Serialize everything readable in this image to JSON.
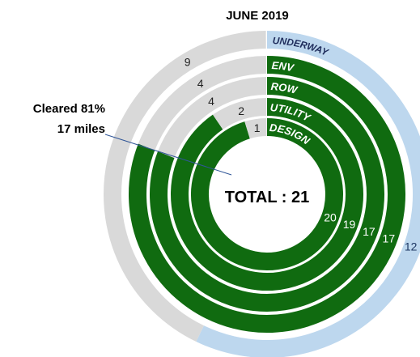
{
  "chart_data": {
    "type": "radial_bar",
    "title": "JUNE 2019",
    "center_label": "TOTAL : 21",
    "annotation": [
      "Cleared 81%",
      "17 miles"
    ],
    "series": [
      {
        "name": "UNDERWAY",
        "colors": [
          "#bdd7ee",
          "#d9d9d9"
        ],
        "values": [
          12,
          9
        ]
      },
      {
        "name": "ENV",
        "colors": [
          "#106b10",
          "#d9d9d9"
        ],
        "values": [
          17,
          4
        ]
      },
      {
        "name": "ROW",
        "colors": [
          "#106b10",
          "#d9d9d9"
        ],
        "values": [
          17,
          4
        ]
      },
      {
        "name": "UTILITY",
        "colors": [
          "#106b10",
          "#d9d9d9"
        ],
        "values": [
          19,
          2
        ]
      },
      {
        "name": "DESIGN",
        "colors": [
          "#106b10",
          "#d9d9d9"
        ],
        "values": [
          20,
          1
        ]
      }
    ]
  }
}
